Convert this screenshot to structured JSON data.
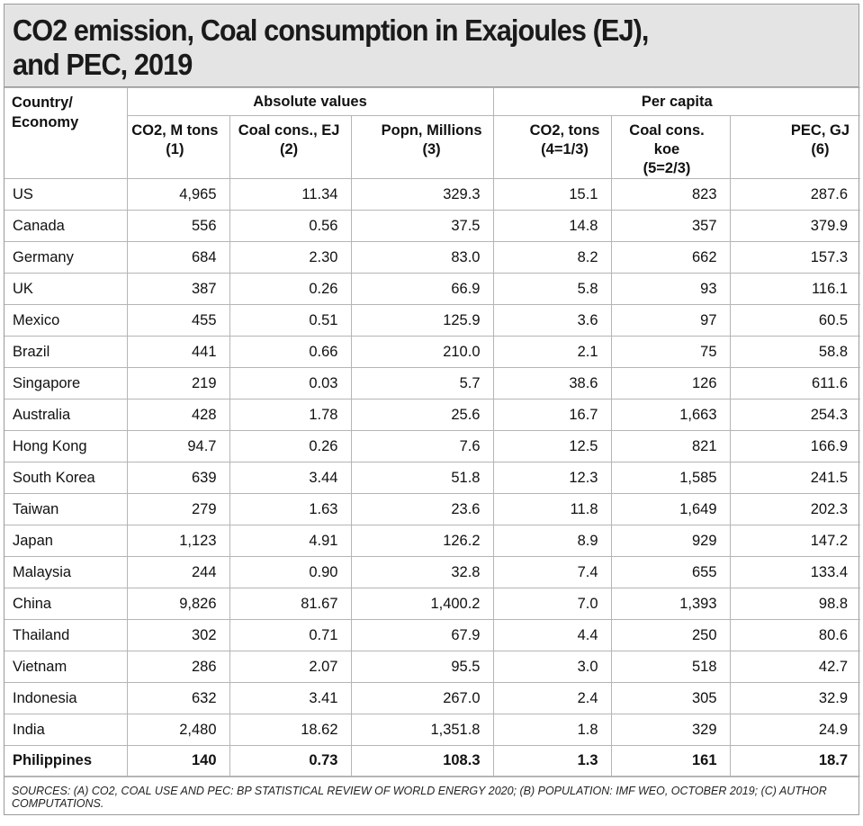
{
  "title_lines": [
    "CO2 emission, Coal consumption in Exajoules (EJ),",
    "and PEC, 2019"
  ],
  "header": {
    "country": "Country/ Economy",
    "group_absolute": "Absolute values",
    "group_per_capita": "Per capita",
    "columns": [
      {
        "name": "CO2, M tons",
        "sub": "(1)"
      },
      {
        "name": "Coal cons., EJ",
        "sub": "(2)"
      },
      {
        "name": "Popn, Millions",
        "sub": "(3)"
      },
      {
        "name": "CO2, tons",
        "sub": "(4=1/3)"
      },
      {
        "name": "Coal cons. koe",
        "sub": "(5=2/3)"
      },
      {
        "name": "PEC, GJ",
        "sub": "(6)"
      }
    ]
  },
  "rows": [
    {
      "name": "US",
      "values": [
        "4,965",
        "11.34",
        "329.3",
        "15.1",
        "823",
        "287.6"
      ]
    },
    {
      "name": "Canada",
      "values": [
        "556",
        "0.56",
        "37.5",
        "14.8",
        "357",
        "379.9"
      ]
    },
    {
      "name": "Germany",
      "values": [
        "684",
        "2.30",
        "83.0",
        "8.2",
        "662",
        "157.3"
      ]
    },
    {
      "name": "UK",
      "values": [
        "387",
        "0.26",
        "66.9",
        "5.8",
        "93",
        "116.1"
      ]
    },
    {
      "name": "Mexico",
      "values": [
        "455",
        "0.51",
        "125.9",
        "3.6",
        "97",
        "60.5"
      ]
    },
    {
      "name": "Brazil",
      "values": [
        "441",
        "0.66",
        "210.0",
        "2.1",
        "75",
        "58.8"
      ]
    },
    {
      "name": "Singapore",
      "values": [
        "219",
        "0.03",
        "5.7",
        "38.6",
        "126",
        "611.6"
      ]
    },
    {
      "name": "Australia",
      "values": [
        "428",
        "1.78",
        "25.6",
        "16.7",
        "1,663",
        "254.3"
      ]
    },
    {
      "name": "Hong Kong",
      "values": [
        "94.7",
        "0.26",
        "7.6",
        "12.5",
        "821",
        "166.9"
      ]
    },
    {
      "name": "South Korea",
      "values": [
        "639",
        "3.44",
        "51.8",
        "12.3",
        "1,585",
        "241.5"
      ]
    },
    {
      "name": "Taiwan",
      "values": [
        "279",
        "1.63",
        "23.6",
        "11.8",
        "1,649",
        "202.3"
      ]
    },
    {
      "name": "Japan",
      "values": [
        "1,123",
        "4.91",
        "126.2",
        "8.9",
        "929",
        "147.2"
      ]
    },
    {
      "name": "Malaysia",
      "values": [
        "244",
        "0.90",
        "32.8",
        "7.4",
        "655",
        "133.4"
      ]
    },
    {
      "name": "China",
      "values": [
        "9,826",
        "81.67",
        "1,400.2",
        "7.0",
        "1,393",
        "98.8"
      ]
    },
    {
      "name": "Thailand",
      "values": [
        "302",
        "0.71",
        "67.9",
        "4.4",
        "250",
        "80.6"
      ]
    },
    {
      "name": "Vietnam",
      "values": [
        "286",
        "2.07",
        "95.5",
        "3.0",
        "518",
        "42.7"
      ]
    },
    {
      "name": "Indonesia",
      "values": [
        "632",
        "3.41",
        "267.0",
        "2.4",
        "305",
        "32.9"
      ]
    },
    {
      "name": "India",
      "values": [
        "2,480",
        "18.62",
        "1,351.8",
        "1.8",
        "329",
        "24.9"
      ]
    },
    {
      "name": "Philippines",
      "values": [
        "140",
        "0.73",
        "108.3",
        "1.3",
        "161",
        "18.7"
      ],
      "bold": true
    }
  ],
  "sources": "SOURCES: (A) CO2, COAL USE AND PEC: BP STATISTICAL REVIEW OF WORLD ENERGY 2020; (B) POPULATION: IMF WEO, OCTOBER 2019; (C) AUTHOR COMPUTATIONS."
}
